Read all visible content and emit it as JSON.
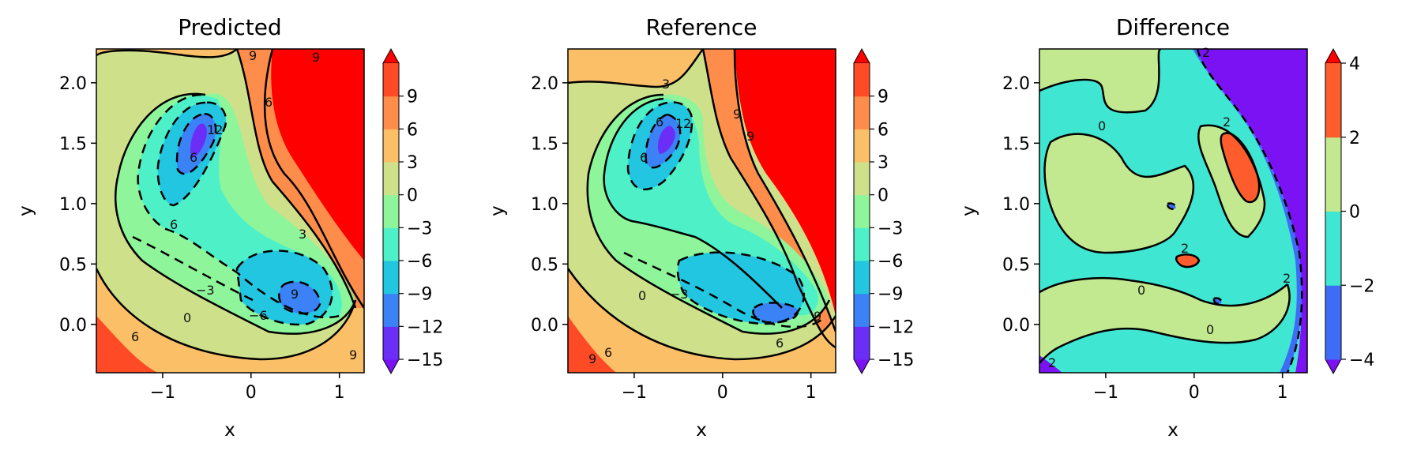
{
  "chart_data": [
    {
      "type": "contour",
      "title": "Predicted",
      "xlabel": "x",
      "ylabel": "y",
      "xlim": [
        -1.75,
        1.28
      ],
      "ylim": [
        -0.4,
        2.28
      ],
      "xticks": [
        -1,
        0,
        1
      ],
      "xtick_labels": [
        "−1",
        "0",
        "1"
      ],
      "yticks": [
        0.0,
        0.5,
        1.0,
        1.5,
        2.0
      ],
      "ytick_labels": [
        "0.0",
        "0.5",
        "1.0",
        "1.5",
        "2.0"
      ],
      "colorbar": {
        "levels": [
          -15,
          -12,
          -9,
          -6,
          -3,
          0,
          3,
          6,
          9
        ],
        "tick_labels": [
          "−15",
          "−12",
          "−9",
          "−6",
          "−3",
          "0",
          "3",
          "6",
          "9"
        ],
        "colors": [
          "#6a2ef7",
          "#3a82f6",
          "#22c6e0",
          "#4ef0c8",
          "#8ef59a",
          "#cfe08a",
          "#fbbf68",
          "#fe8c4a",
          "#ff4a26"
        ],
        "extend": "both",
        "under_color": "#7b12f4",
        "over_color": "#ff0000"
      },
      "contour_labels": [
        "9",
        "9",
        "6",
        "12",
        "6",
        "6",
        "3",
        "9",
        "−3",
        "0",
        "−6",
        "6",
        "9"
      ]
    },
    {
      "type": "contour",
      "title": "Reference",
      "xlabel": "x",
      "ylabel": "y",
      "xlim": [
        -1.75,
        1.28
      ],
      "ylim": [
        -0.4,
        2.28
      ],
      "xticks": [
        -1,
        0,
        1
      ],
      "xtick_labels": [
        "−1",
        "0",
        "1"
      ],
      "yticks": [
        0.0,
        0.5,
        1.0,
        1.5,
        2.0
      ],
      "ytick_labels": [
        "0.0",
        "0.5",
        "1.0",
        "1.5",
        "2.0"
      ],
      "colorbar": {
        "levels": [
          -15,
          -12,
          -9,
          -6,
          -3,
          0,
          3,
          6,
          9
        ],
        "tick_labels": [
          "−15",
          "−12",
          "−9",
          "−6",
          "−3",
          "0",
          "3",
          "6",
          "9"
        ],
        "colors": [
          "#6a2ef7",
          "#3a82f6",
          "#22c6e0",
          "#4ef0c8",
          "#8ef59a",
          "#cfe08a",
          "#fbbf68",
          "#fe8c4a",
          "#ff4a26"
        ],
        "extend": "both",
        "under_color": "#7b12f4",
        "over_color": "#ff0000"
      },
      "contour_labels": [
        "3",
        "9",
        "6",
        "12",
        "6",
        "9",
        "0",
        "−3",
        "9",
        "6",
        "9",
        "6"
      ]
    },
    {
      "type": "contour",
      "title": "Difference",
      "xlabel": "x",
      "ylabel": "y",
      "xlim": [
        -1.75,
        1.28
      ],
      "ylim": [
        -0.4,
        2.28
      ],
      "xticks": [
        -1,
        0,
        1
      ],
      "xtick_labels": [
        "−1",
        "0",
        "1"
      ],
      "yticks": [
        0.0,
        0.5,
        1.0,
        1.5,
        2.0
      ],
      "ytick_labels": [
        "0.0",
        "0.5",
        "1.0",
        "1.5",
        "2.0"
      ],
      "colorbar": {
        "levels": [
          -4,
          -2,
          0,
          2,
          4
        ],
        "tick_labels": [
          "−4",
          "−2",
          "0",
          "2",
          "4"
        ],
        "colors": [
          "#3f6cf6",
          "#3fe6d2",
          "#c2e98f",
          "#fe5c2d"
        ],
        "extend": "both",
        "under_color": "#7b12f4",
        "over_color": "#ff0000"
      },
      "contour_labels": [
        "0",
        "2",
        "2",
        "0",
        "0",
        "2",
        "2",
        "2"
      ]
    }
  ]
}
